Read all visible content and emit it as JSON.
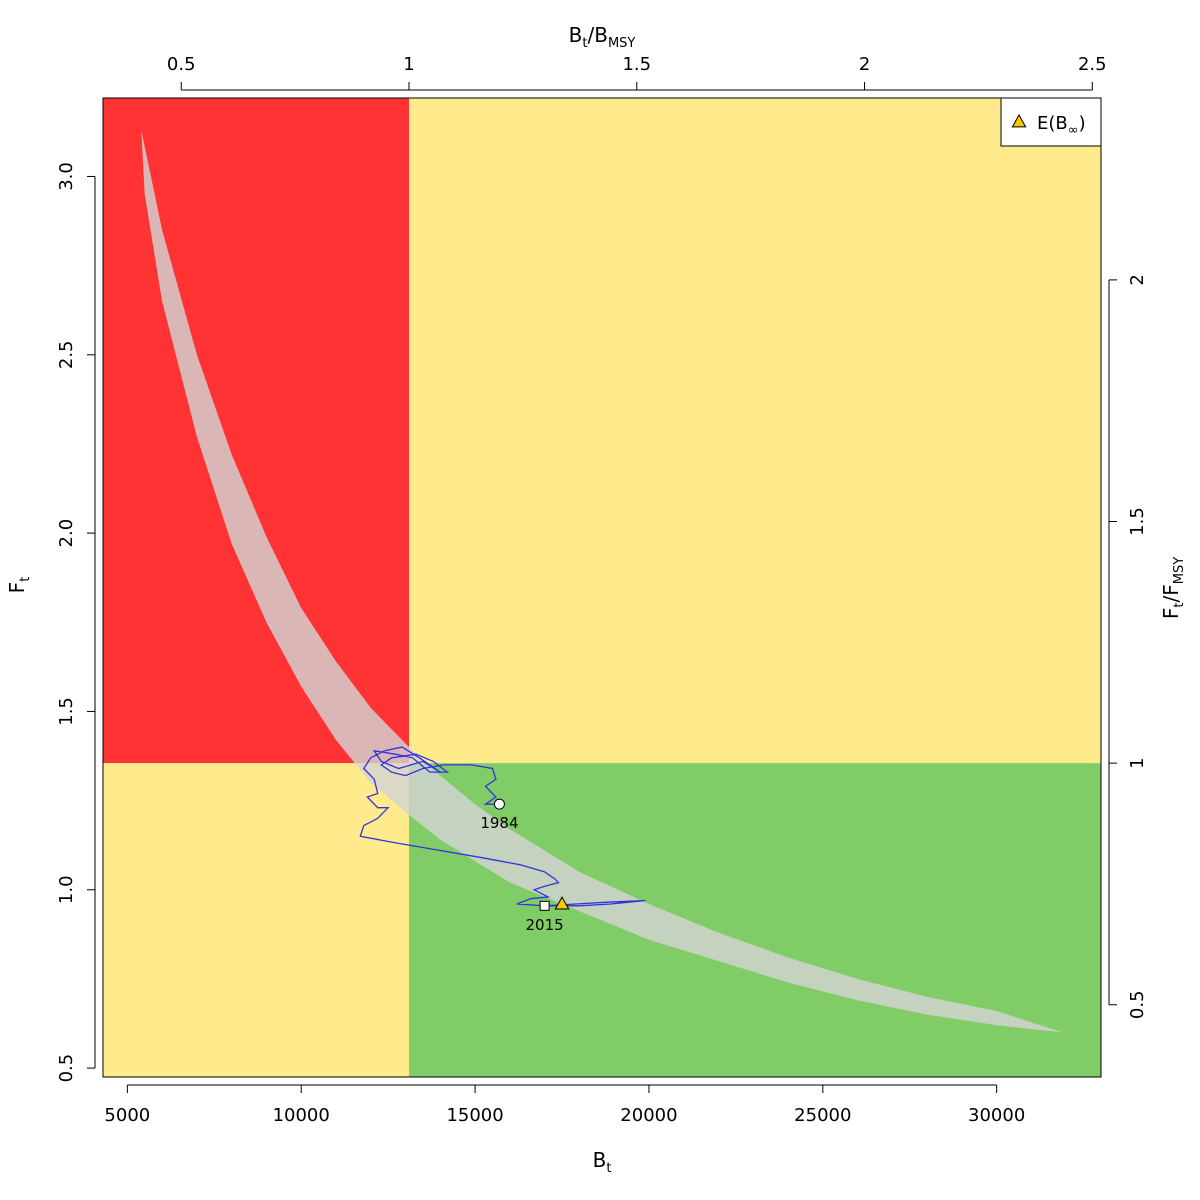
{
  "chart_data": {
    "type": "line",
    "title": "",
    "xlabel": {
      "main": "B",
      "sub": "t"
    },
    "ylabel": {
      "main": "F",
      "sub": "t"
    },
    "x2label": {
      "main": "B",
      "sub": "t",
      "sep": "/",
      "main2": "B",
      "sub2": "MSY"
    },
    "y2label": {
      "main": "F",
      "sub": "t",
      "sep": "/",
      "main2": "F",
      "sub2": "MSY"
    },
    "xlim": [
      4300,
      33000
    ],
    "ylim": [
      0.475,
      3.22
    ],
    "bmsy": 13100,
    "fmsy": 1.355,
    "x_ticks": [
      5000,
      10000,
      15000,
      20000,
      25000,
      30000
    ],
    "x_tick_labels": [
      "5000",
      "10000",
      "15000",
      "20000",
      "25000",
      "30000"
    ],
    "y_ticks": [
      0.5,
      1.0,
      1.5,
      2.0,
      2.5,
      3.0
    ],
    "y_tick_labels": [
      "0.5",
      "1.0",
      "1.5",
      "2.0",
      "2.5",
      "3.0"
    ],
    "x2_ticks": [
      0.5,
      1,
      1.5,
      2,
      2.5
    ],
    "x2_tick_labels": [
      "0.5",
      "1",
      "1.5",
      "2",
      "2.5"
    ],
    "y2_ticks": [
      0.5,
      1,
      1.5,
      2
    ],
    "y2_tick_labels": [
      "0.5",
      "1",
      "1.5",
      "2"
    ],
    "colors": {
      "red_zone": "#ff3333",
      "yellow_zone": "#ffeb8c",
      "green_zone": "#80cc66",
      "equilibrium_band": "#d3d3d3",
      "trajectory": "#3333dd",
      "triangle_fill": "#f5c800"
    },
    "equilibrium_band": {
      "upper": [
        [
          5400,
          3.13
        ],
        [
          6000,
          2.85
        ],
        [
          7000,
          2.5
        ],
        [
          8000,
          2.22
        ],
        [
          9000,
          1.99
        ],
        [
          10000,
          1.79
        ],
        [
          11000,
          1.64
        ],
        [
          12000,
          1.51
        ],
        [
          13100,
          1.4
        ],
        [
          14000,
          1.32
        ],
        [
          15000,
          1.24
        ],
        [
          16000,
          1.17
        ],
        [
          17000,
          1.11
        ],
        [
          18000,
          1.05
        ],
        [
          20000,
          0.96
        ],
        [
          22000,
          0.88
        ],
        [
          24000,
          0.81
        ],
        [
          26000,
          0.75
        ],
        [
          28000,
          0.7
        ],
        [
          30000,
          0.66
        ],
        [
          31900,
          0.6
        ]
      ],
      "lower": [
        [
          31900,
          0.6
        ],
        [
          30000,
          0.62
        ],
        [
          28000,
          0.65
        ],
        [
          26000,
          0.69
        ],
        [
          24000,
          0.74
        ],
        [
          22000,
          0.8
        ],
        [
          20000,
          0.86
        ],
        [
          18000,
          0.94
        ],
        [
          17000,
          0.98
        ],
        [
          16000,
          1.02
        ],
        [
          15000,
          1.08
        ],
        [
          14000,
          1.14
        ],
        [
          13100,
          1.21
        ],
        [
          12000,
          1.3
        ],
        [
          11000,
          1.42
        ],
        [
          10000,
          1.57
        ],
        [
          9000,
          1.75
        ],
        [
          8000,
          1.97
        ],
        [
          7000,
          2.27
        ],
        [
          6000,
          2.65
        ],
        [
          5500,
          2.95
        ],
        [
          5400,
          3.13
        ]
      ]
    },
    "trajectory": [
      [
        15700,
        1.24
      ],
      [
        15300,
        1.24
      ],
      [
        15600,
        1.26
      ],
      [
        15300,
        1.29
      ],
      [
        15600,
        1.31
      ],
      [
        15500,
        1.34
      ],
      [
        14900,
        1.35
      ],
      [
        14100,
        1.35
      ],
      [
        13500,
        1.34
      ],
      [
        13000,
        1.32
      ],
      [
        12600,
        1.33
      ],
      [
        12300,
        1.35
      ],
      [
        12600,
        1.37
      ],
      [
        13300,
        1.38
      ],
      [
        13800,
        1.36
      ],
      [
        14200,
        1.33
      ],
      [
        13700,
        1.33
      ],
      [
        13200,
        1.37
      ],
      [
        12700,
        1.38
      ],
      [
        12100,
        1.39
      ],
      [
        12300,
        1.36
      ],
      [
        12800,
        1.34
      ],
      [
        13500,
        1.36
      ],
      [
        14000,
        1.33
      ],
      [
        13400,
        1.37
      ],
      [
        12900,
        1.4
      ],
      [
        12400,
        1.39
      ],
      [
        12000,
        1.37
      ],
      [
        11800,
        1.34
      ],
      [
        12100,
        1.31
      ],
      [
        12200,
        1.27
      ],
      [
        11900,
        1.26
      ],
      [
        12200,
        1.23
      ],
      [
        12500,
        1.23
      ],
      [
        12200,
        1.2
      ],
      [
        11800,
        1.18
      ],
      [
        11700,
        1.15
      ],
      [
        12800,
        1.13
      ],
      [
        14000,
        1.11
      ],
      [
        15200,
        1.09
      ],
      [
        16300,
        1.07
      ],
      [
        17000,
        1.05
      ],
      [
        17300,
        1.03
      ],
      [
        17400,
        1.02
      ],
      [
        17000,
        1.01
      ],
      [
        16700,
        1.0
      ],
      [
        16900,
        0.99
      ],
      [
        17100,
        0.98
      ],
      [
        16600,
        0.975
      ],
      [
        16200,
        0.96
      ],
      [
        17000,
        0.955
      ],
      [
        17900,
        0.96
      ],
      [
        18800,
        0.965
      ],
      [
        19900,
        0.97
      ],
      [
        18900,
        0.96
      ],
      [
        18000,
        0.955
      ],
      [
        17000,
        0.955
      ]
    ],
    "points": [
      {
        "label": "1984",
        "x": 15700,
        "y": 1.24,
        "shape": "circle"
      },
      {
        "label": "2015",
        "x": 17000,
        "y": 0.955,
        "shape": "square"
      }
    ],
    "equilibrium_point": {
      "x": 17500,
      "y": 0.957,
      "shape": "triangle"
    },
    "legend": {
      "placement": "top-right",
      "entries": [
        {
          "label": "E(B",
          "sub": "∞",
          "tail": ")",
          "shape": "triangle"
        }
      ]
    }
  }
}
